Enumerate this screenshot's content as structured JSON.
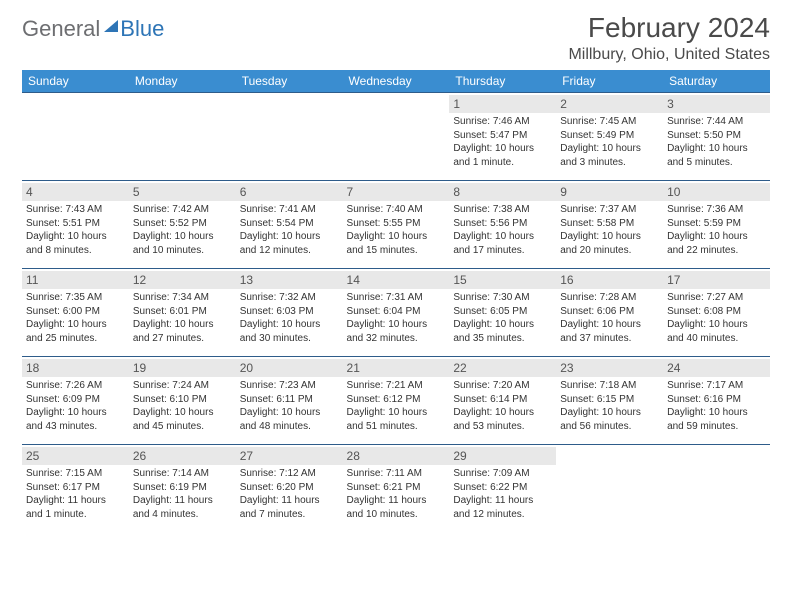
{
  "logo": {
    "text1": "General",
    "text2": "Blue"
  },
  "title": "February 2024",
  "location": "Millbury, Ohio, United States",
  "colors": {
    "header_bg": "#3a8dd0",
    "border": "#2e5c8a",
    "daynum_bg": "#e8e8e8"
  },
  "dayNames": [
    "Sunday",
    "Monday",
    "Tuesday",
    "Wednesday",
    "Thursday",
    "Friday",
    "Saturday"
  ],
  "weeks": [
    [
      null,
      null,
      null,
      null,
      {
        "n": "1",
        "sr": "7:46 AM",
        "ss": "5:47 PM",
        "d1": "Daylight: 10 hours",
        "d2": "and 1 minute."
      },
      {
        "n": "2",
        "sr": "7:45 AM",
        "ss": "5:49 PM",
        "d1": "Daylight: 10 hours",
        "d2": "and 3 minutes."
      },
      {
        "n": "3",
        "sr": "7:44 AM",
        "ss": "5:50 PM",
        "d1": "Daylight: 10 hours",
        "d2": "and 5 minutes."
      }
    ],
    [
      {
        "n": "4",
        "sr": "7:43 AM",
        "ss": "5:51 PM",
        "d1": "Daylight: 10 hours",
        "d2": "and 8 minutes."
      },
      {
        "n": "5",
        "sr": "7:42 AM",
        "ss": "5:52 PM",
        "d1": "Daylight: 10 hours",
        "d2": "and 10 minutes."
      },
      {
        "n": "6",
        "sr": "7:41 AM",
        "ss": "5:54 PM",
        "d1": "Daylight: 10 hours",
        "d2": "and 12 minutes."
      },
      {
        "n": "7",
        "sr": "7:40 AM",
        "ss": "5:55 PM",
        "d1": "Daylight: 10 hours",
        "d2": "and 15 minutes."
      },
      {
        "n": "8",
        "sr": "7:38 AM",
        "ss": "5:56 PM",
        "d1": "Daylight: 10 hours",
        "d2": "and 17 minutes."
      },
      {
        "n": "9",
        "sr": "7:37 AM",
        "ss": "5:58 PM",
        "d1": "Daylight: 10 hours",
        "d2": "and 20 minutes."
      },
      {
        "n": "10",
        "sr": "7:36 AM",
        "ss": "5:59 PM",
        "d1": "Daylight: 10 hours",
        "d2": "and 22 minutes."
      }
    ],
    [
      {
        "n": "11",
        "sr": "7:35 AM",
        "ss": "6:00 PM",
        "d1": "Daylight: 10 hours",
        "d2": "and 25 minutes."
      },
      {
        "n": "12",
        "sr": "7:34 AM",
        "ss": "6:01 PM",
        "d1": "Daylight: 10 hours",
        "d2": "and 27 minutes."
      },
      {
        "n": "13",
        "sr": "7:32 AM",
        "ss": "6:03 PM",
        "d1": "Daylight: 10 hours",
        "d2": "and 30 minutes."
      },
      {
        "n": "14",
        "sr": "7:31 AM",
        "ss": "6:04 PM",
        "d1": "Daylight: 10 hours",
        "d2": "and 32 minutes."
      },
      {
        "n": "15",
        "sr": "7:30 AM",
        "ss": "6:05 PM",
        "d1": "Daylight: 10 hours",
        "d2": "and 35 minutes."
      },
      {
        "n": "16",
        "sr": "7:28 AM",
        "ss": "6:06 PM",
        "d1": "Daylight: 10 hours",
        "d2": "and 37 minutes."
      },
      {
        "n": "17",
        "sr": "7:27 AM",
        "ss": "6:08 PM",
        "d1": "Daylight: 10 hours",
        "d2": "and 40 minutes."
      }
    ],
    [
      {
        "n": "18",
        "sr": "7:26 AM",
        "ss": "6:09 PM",
        "d1": "Daylight: 10 hours",
        "d2": "and 43 minutes."
      },
      {
        "n": "19",
        "sr": "7:24 AM",
        "ss": "6:10 PM",
        "d1": "Daylight: 10 hours",
        "d2": "and 45 minutes."
      },
      {
        "n": "20",
        "sr": "7:23 AM",
        "ss": "6:11 PM",
        "d1": "Daylight: 10 hours",
        "d2": "and 48 minutes."
      },
      {
        "n": "21",
        "sr": "7:21 AM",
        "ss": "6:12 PM",
        "d1": "Daylight: 10 hours",
        "d2": "and 51 minutes."
      },
      {
        "n": "22",
        "sr": "7:20 AM",
        "ss": "6:14 PM",
        "d1": "Daylight: 10 hours",
        "d2": "and 53 minutes."
      },
      {
        "n": "23",
        "sr": "7:18 AM",
        "ss": "6:15 PM",
        "d1": "Daylight: 10 hours",
        "d2": "and 56 minutes."
      },
      {
        "n": "24",
        "sr": "7:17 AM",
        "ss": "6:16 PM",
        "d1": "Daylight: 10 hours",
        "d2": "and 59 minutes."
      }
    ],
    [
      {
        "n": "25",
        "sr": "7:15 AM",
        "ss": "6:17 PM",
        "d1": "Daylight: 11 hours",
        "d2": "and 1 minute."
      },
      {
        "n": "26",
        "sr": "7:14 AM",
        "ss": "6:19 PM",
        "d1": "Daylight: 11 hours",
        "d2": "and 4 minutes."
      },
      {
        "n": "27",
        "sr": "7:12 AM",
        "ss": "6:20 PM",
        "d1": "Daylight: 11 hours",
        "d2": "and 7 minutes."
      },
      {
        "n": "28",
        "sr": "7:11 AM",
        "ss": "6:21 PM",
        "d1": "Daylight: 11 hours",
        "d2": "and 10 minutes."
      },
      {
        "n": "29",
        "sr": "7:09 AM",
        "ss": "6:22 PM",
        "d1": "Daylight: 11 hours",
        "d2": "and 12 minutes."
      },
      null,
      null
    ]
  ],
  "labels": {
    "sunrise": "Sunrise: ",
    "sunset": "Sunset: "
  }
}
